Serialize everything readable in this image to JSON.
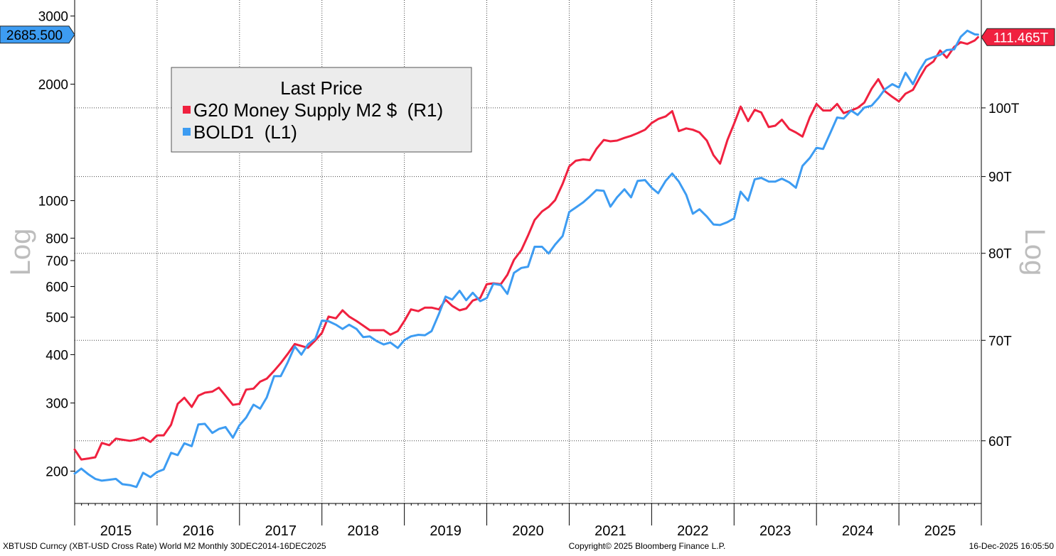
{
  "chart_data": {
    "type": "line",
    "title": "",
    "legend": {
      "title": "Last Price",
      "placement": "top-left",
      "entries": [
        {
          "label": "G20 Money Supply M2 $  (R1)",
          "color": "#f0213f"
        },
        {
          "label": "BOLD1  (L1)",
          "color": "#3d9cf2"
        }
      ]
    },
    "left_axis": {
      "label": "Log",
      "scale": "log",
      "range": [
        165,
        3300
      ],
      "ticks": [
        200,
        300,
        400,
        500,
        600,
        700,
        800,
        1000,
        2000,
        3000
      ],
      "tick_labels": [
        "200",
        "300",
        "400",
        "500",
        "600",
        "700",
        "800",
        "1000",
        "2000",
        "3000"
      ],
      "last_value_label": "2685.500"
    },
    "right_axis": {
      "label": "Log",
      "scale": "log",
      "range": [
        54.5,
        118
      ],
      "ticks": [
        60,
        70,
        80,
        90,
        100
      ],
      "tick_labels": [
        "60T",
        "70T",
        "80T",
        "90T",
        "100T"
      ],
      "last_value_label": "111.465T"
    },
    "x_axis": {
      "range": [
        2015.0,
        2026.0
      ],
      "ticks": [
        2015,
        2016,
        2017,
        2018,
        2019,
        2020,
        2021,
        2022,
        2023,
        2024,
        2025,
        2026
      ],
      "tick_labels": [
        "2015",
        "2016",
        "2017",
        "2018",
        "2019",
        "2020",
        "2021",
        "2022",
        "2023",
        "2024",
        "2025"
      ]
    },
    "grid": true,
    "series": [
      {
        "name": "G20 Money Supply M2 $",
        "axis": "right",
        "color": "#f0213f",
        "points": [
          [
            2015.0,
            59.2
          ],
          [
            2015.08,
            58.3
          ],
          [
            2015.17,
            58.4
          ],
          [
            2015.25,
            58.5
          ],
          [
            2015.33,
            59.8
          ],
          [
            2015.42,
            59.6
          ],
          [
            2015.5,
            60.2
          ],
          [
            2015.58,
            60.1
          ],
          [
            2015.67,
            60.0
          ],
          [
            2015.75,
            60.1
          ],
          [
            2015.83,
            60.3
          ],
          [
            2015.92,
            59.9
          ],
          [
            2016.0,
            60.5
          ],
          [
            2016.08,
            60.5
          ],
          [
            2016.17,
            61.5
          ],
          [
            2016.25,
            63.5
          ],
          [
            2016.33,
            64.1
          ],
          [
            2016.42,
            63.2
          ],
          [
            2016.5,
            64.3
          ],
          [
            2016.58,
            64.6
          ],
          [
            2016.67,
            64.7
          ],
          [
            2016.75,
            65.1
          ],
          [
            2016.83,
            64.3
          ],
          [
            2016.92,
            63.4
          ],
          [
            2017.0,
            63.5
          ],
          [
            2017.08,
            64.9
          ],
          [
            2017.17,
            65.0
          ],
          [
            2017.25,
            65.7
          ],
          [
            2017.33,
            66.0
          ],
          [
            2017.42,
            66.8
          ],
          [
            2017.5,
            67.6
          ],
          [
            2017.58,
            68.5
          ],
          [
            2017.67,
            69.6
          ],
          [
            2017.75,
            69.4
          ],
          [
            2017.83,
            69.2
          ],
          [
            2017.92,
            70.0
          ],
          [
            2018.0,
            70.8
          ],
          [
            2018.08,
            72.6
          ],
          [
            2018.17,
            72.4
          ],
          [
            2018.25,
            73.3
          ],
          [
            2018.33,
            72.6
          ],
          [
            2018.42,
            72.1
          ],
          [
            2018.5,
            71.6
          ],
          [
            2018.58,
            71.1
          ],
          [
            2018.67,
            71.1
          ],
          [
            2018.75,
            71.1
          ],
          [
            2018.83,
            70.6
          ],
          [
            2018.92,
            71.0
          ],
          [
            2019.0,
            72.1
          ],
          [
            2019.08,
            73.4
          ],
          [
            2019.17,
            73.2
          ],
          [
            2019.25,
            73.6
          ],
          [
            2019.33,
            73.6
          ],
          [
            2019.42,
            73.4
          ],
          [
            2019.5,
            74.5
          ],
          [
            2019.58,
            73.8
          ],
          [
            2019.67,
            73.3
          ],
          [
            2019.75,
            73.5
          ],
          [
            2019.83,
            74.4
          ],
          [
            2019.92,
            74.7
          ],
          [
            2020.0,
            76.3
          ],
          [
            2020.08,
            76.4
          ],
          [
            2020.17,
            76.3
          ],
          [
            2020.25,
            77.4
          ],
          [
            2020.33,
            79.2
          ],
          [
            2020.42,
            80.4
          ],
          [
            2020.5,
            82.2
          ],
          [
            2020.58,
            84.2
          ],
          [
            2020.67,
            85.3
          ],
          [
            2020.75,
            85.9
          ],
          [
            2020.83,
            86.8
          ],
          [
            2020.92,
            89.0
          ],
          [
            2021.0,
            91.4
          ],
          [
            2021.08,
            92.2
          ],
          [
            2021.17,
            92.4
          ],
          [
            2021.25,
            92.3
          ],
          [
            2021.33,
            93.9
          ],
          [
            2021.42,
            95.2
          ],
          [
            2021.5,
            95.0
          ],
          [
            2021.58,
            95.1
          ],
          [
            2021.67,
            95.5
          ],
          [
            2021.75,
            95.8
          ],
          [
            2021.83,
            96.2
          ],
          [
            2021.92,
            96.7
          ],
          [
            2022.0,
            97.7
          ],
          [
            2022.08,
            98.3
          ],
          [
            2022.17,
            98.7
          ],
          [
            2022.25,
            99.5
          ],
          [
            2022.33,
            96.5
          ],
          [
            2022.42,
            96.9
          ],
          [
            2022.5,
            96.7
          ],
          [
            2022.58,
            96.3
          ],
          [
            2022.67,
            95.1
          ],
          [
            2022.75,
            93.0
          ],
          [
            2022.83,
            91.8
          ],
          [
            2022.92,
            95.2
          ],
          [
            2023.0,
            97.6
          ],
          [
            2023.08,
            100.2
          ],
          [
            2023.17,
            98.0
          ],
          [
            2023.25,
            99.7
          ],
          [
            2023.33,
            99.3
          ],
          [
            2023.42,
            97.1
          ],
          [
            2023.5,
            97.3
          ],
          [
            2023.58,
            98.2
          ],
          [
            2023.67,
            96.8
          ],
          [
            2023.75,
            96.3
          ],
          [
            2023.83,
            95.7
          ],
          [
            2023.92,
            98.6
          ],
          [
            2024.0,
            100.6
          ],
          [
            2024.08,
            99.6
          ],
          [
            2024.17,
            99.6
          ],
          [
            2024.25,
            100.6
          ],
          [
            2024.33,
            99.2
          ],
          [
            2024.42,
            99.6
          ],
          [
            2024.5,
            100.0
          ],
          [
            2024.58,
            100.8
          ],
          [
            2024.67,
            103.0
          ],
          [
            2024.75,
            104.5
          ],
          [
            2024.83,
            102.6
          ],
          [
            2024.92,
            101.7
          ],
          [
            2025.0,
            101.0
          ],
          [
            2025.08,
            102.2
          ],
          [
            2025.17,
            102.8
          ],
          [
            2025.25,
            104.7
          ],
          [
            2025.33,
            106.5
          ],
          [
            2025.42,
            107.4
          ],
          [
            2025.5,
            109.2
          ],
          [
            2025.58,
            108.0
          ],
          [
            2025.67,
            109.8
          ],
          [
            2025.75,
            110.6
          ],
          [
            2025.83,
            110.3
          ],
          [
            2025.92,
            110.9
          ],
          [
            2025.96,
            111.465
          ]
        ]
      },
      {
        "name": "BOLD1",
        "axis": "left",
        "color": "#3d9cf2",
        "points": [
          [
            2015.0,
            197
          ],
          [
            2015.08,
            203
          ],
          [
            2015.17,
            196
          ],
          [
            2015.25,
            191
          ],
          [
            2015.33,
            189
          ],
          [
            2015.42,
            190
          ],
          [
            2015.5,
            191
          ],
          [
            2015.58,
            185
          ],
          [
            2015.67,
            184
          ],
          [
            2015.75,
            182
          ],
          [
            2015.83,
            198
          ],
          [
            2015.92,
            193
          ],
          [
            2016.0,
            199
          ],
          [
            2016.08,
            202
          ],
          [
            2016.17,
            223
          ],
          [
            2016.25,
            220
          ],
          [
            2016.33,
            236
          ],
          [
            2016.42,
            232
          ],
          [
            2016.5,
            264
          ],
          [
            2016.58,
            265
          ],
          [
            2016.67,
            251
          ],
          [
            2016.75,
            257
          ],
          [
            2016.83,
            260
          ],
          [
            2016.92,
            244
          ],
          [
            2017.0,
            263
          ],
          [
            2017.08,
            275
          ],
          [
            2017.17,
            297
          ],
          [
            2017.25,
            290
          ],
          [
            2017.33,
            310
          ],
          [
            2017.42,
            352
          ],
          [
            2017.5,
            352
          ],
          [
            2017.58,
            380
          ],
          [
            2017.67,
            420
          ],
          [
            2017.75,
            400
          ],
          [
            2017.83,
            425
          ],
          [
            2017.92,
            440
          ],
          [
            2018.0,
            490
          ],
          [
            2018.08,
            488
          ],
          [
            2018.17,
            478
          ],
          [
            2018.25,
            466
          ],
          [
            2018.33,
            478
          ],
          [
            2018.42,
            466
          ],
          [
            2018.5,
            444
          ],
          [
            2018.58,
            446
          ],
          [
            2018.67,
            433
          ],
          [
            2018.75,
            425
          ],
          [
            2018.83,
            430
          ],
          [
            2018.92,
            416
          ],
          [
            2019.0,
            436
          ],
          [
            2019.08,
            446
          ],
          [
            2019.17,
            450
          ],
          [
            2019.25,
            449
          ],
          [
            2019.33,
            460
          ],
          [
            2019.42,
            510
          ],
          [
            2019.5,
            565
          ],
          [
            2019.58,
            555
          ],
          [
            2019.67,
            585
          ],
          [
            2019.75,
            553
          ],
          [
            2019.83,
            578
          ],
          [
            2019.92,
            550
          ],
          [
            2020.0,
            560
          ],
          [
            2020.08,
            610
          ],
          [
            2020.17,
            605
          ],
          [
            2020.25,
            574
          ],
          [
            2020.33,
            651
          ],
          [
            2020.42,
            670
          ],
          [
            2020.5,
            675
          ],
          [
            2020.58,
            760
          ],
          [
            2020.67,
            760
          ],
          [
            2020.75,
            730
          ],
          [
            2020.83,
            770
          ],
          [
            2020.92,
            810
          ],
          [
            2021.0,
            935
          ],
          [
            2021.08,
            960
          ],
          [
            2021.17,
            990
          ],
          [
            2021.25,
            1025
          ],
          [
            2021.33,
            1065
          ],
          [
            2021.42,
            1060
          ],
          [
            2021.5,
            965
          ],
          [
            2021.58,
            1020
          ],
          [
            2021.67,
            1070
          ],
          [
            2021.75,
            1020
          ],
          [
            2021.83,
            1125
          ],
          [
            2021.92,
            1130
          ],
          [
            2022.0,
            1080
          ],
          [
            2022.08,
            1045
          ],
          [
            2022.17,
            1125
          ],
          [
            2022.25,
            1175
          ],
          [
            2022.33,
            1120
          ],
          [
            2022.42,
            1035
          ],
          [
            2022.5,
            925
          ],
          [
            2022.58,
            950
          ],
          [
            2022.67,
            910
          ],
          [
            2022.75,
            868
          ],
          [
            2022.83,
            865
          ],
          [
            2022.92,
            880
          ],
          [
            2023.0,
            900
          ],
          [
            2023.08,
            1055
          ],
          [
            2023.17,
            1000
          ],
          [
            2023.25,
            1135
          ],
          [
            2023.33,
            1145
          ],
          [
            2023.42,
            1120
          ],
          [
            2023.5,
            1120
          ],
          [
            2023.58,
            1140
          ],
          [
            2023.67,
            1115
          ],
          [
            2023.75,
            1080
          ],
          [
            2023.83,
            1230
          ],
          [
            2023.92,
            1290
          ],
          [
            2024.0,
            1370
          ],
          [
            2024.08,
            1360
          ],
          [
            2024.17,
            1500
          ],
          [
            2024.25,
            1640
          ],
          [
            2024.33,
            1630
          ],
          [
            2024.42,
            1710
          ],
          [
            2024.5,
            1665
          ],
          [
            2024.58,
            1740
          ],
          [
            2024.67,
            1760
          ],
          [
            2024.75,
            1840
          ],
          [
            2024.83,
            1940
          ],
          [
            2024.92,
            2000
          ],
          [
            2025.0,
            1960
          ],
          [
            2025.08,
            2140
          ],
          [
            2025.17,
            2000
          ],
          [
            2025.25,
            2170
          ],
          [
            2025.33,
            2310
          ],
          [
            2025.42,
            2350
          ],
          [
            2025.5,
            2380
          ],
          [
            2025.58,
            2450
          ],
          [
            2025.67,
            2460
          ],
          [
            2025.75,
            2650
          ],
          [
            2025.83,
            2750
          ],
          [
            2025.92,
            2690
          ],
          [
            2025.96,
            2685.5
          ]
        ]
      }
    ]
  },
  "footer": {
    "left": "XBTUSD Curncy (XBT-USD Cross Rate) World M2 Monthly 30DEC2014-16DEC2025",
    "center": "Copyright© 2025 Bloomberg Finance L.P.",
    "right": "16-Dec-2025 16:05:50"
  }
}
